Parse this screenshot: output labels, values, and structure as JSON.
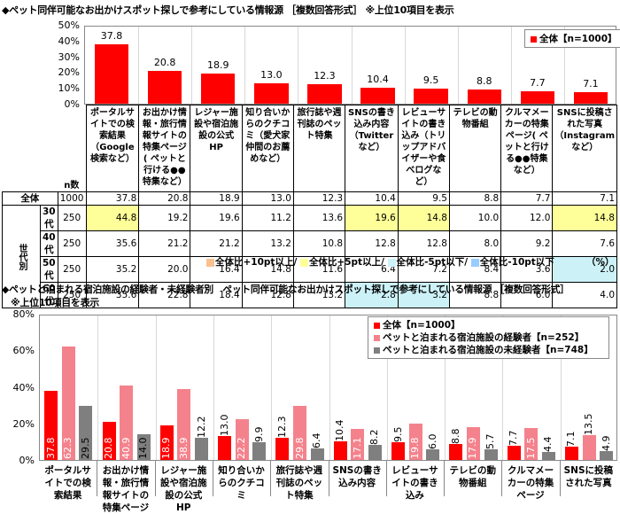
{
  "chart1": {
    "title": "◆ペット同伴可能なお出かけスポット探しで参考にしている情報源 ［複数回答形式］ ※上位10項目を表示",
    "yticks": [
      "50%",
      "40%",
      "30%",
      "20%",
      "10%",
      "0%"
    ],
    "legend": "全体【n=1000】",
    "values_display": [
      "37.8",
      "20.8",
      "18.9",
      "13.0",
      "12.3",
      "10.4",
      "9.5",
      "8.8",
      "7.7",
      "7.1"
    ]
  },
  "table": {
    "n_header": "n数",
    "columns": [
      "ポータルサイトでの検索結果（Google検索など）",
      "お出かけ情報・旅行情報サイトの特集ページ( ペットと行ける●●特集など）",
      "レジャー施設や宿泊施設の公式HP",
      "知り合いからのクチコミ（愛犬家仲間のお薦めなど）",
      "旅行誌や週刊誌のペット特集",
      "SNSの書き込み内容（Twitterなど）",
      "レビューサイトの書き込み（トリップアドバイザーや食べログなど）",
      "テレビの動物番組",
      "クルマメーカーの特集ページ( ペットと行ける●●特集など）",
      "SNSに投稿された写真（Instagramなど）"
    ],
    "total_row": {
      "label": "全体",
      "n": "1000",
      "values": [
        "37.8",
        "20.8",
        "18.9",
        "13.0",
        "12.3",
        "10.4",
        "9.5",
        "8.8",
        "7.7",
        "7.1"
      ]
    },
    "group_label": "世代別",
    "rows": [
      {
        "label": "30代",
        "n": "250",
        "values": [
          "44.8",
          "19.2",
          "19.6",
          "11.2",
          "13.6",
          "19.6",
          "14.8",
          "10.0",
          "12.0",
          "14.8"
        ],
        "hl": [
          "y5",
          "",
          "",
          "",
          "",
          "y5",
          "y5",
          "",
          "",
          "y5"
        ]
      },
      {
        "label": "40代",
        "n": "250",
        "values": [
          "35.6",
          "21.2",
          "21.2",
          "13.2",
          "10.8",
          "12.8",
          "12.8",
          "8.0",
          "9.2",
          "7.6"
        ],
        "hl": [
          "",
          "",
          "",
          "",
          "",
          "",
          "",
          "",
          "",
          ""
        ]
      },
      {
        "label": "50代",
        "n": "250",
        "values": [
          "35.2",
          "20.0",
          "16.4",
          "14.8",
          "11.6",
          "6.4",
          "7.2",
          "8.4",
          "3.6",
          "2.0"
        ],
        "hl": [
          "",
          "",
          "",
          "",
          "",
          "",
          "",
          "",
          "",
          "b5"
        ]
      },
      {
        "label": "60代",
        "n": "250",
        "values": [
          "35.6",
          "22.8",
          "18.4",
          "12.8",
          "13.2",
          "2.8",
          "3.2",
          "8.8",
          "6.0",
          "4.0"
        ],
        "hl": [
          "",
          "",
          "",
          "",
          "",
          "b5",
          "b5",
          "",
          "",
          ""
        ]
      }
    ],
    "notes": [
      "全体比+10pt以上/",
      "全体比+5pt以上/",
      "全体比-5pt以下/",
      "全体比-10pt以下"
    ],
    "unit": "（%）"
  },
  "chart2": {
    "title": "◆ペットと泊まれる宿泊施設の経験者・未経験者別　ペット同伴可能なお出かけスポット探しで参考にしている情報源 ［複数回答形式］",
    "subtitle": "※上位10項目を表示",
    "yticks": [
      "80%",
      "60%",
      "40%",
      "20%",
      "0%"
    ],
    "legend": [
      "全体【n=1000】",
      "ペットと泊まれる宿泊施設の経験者【n=252】",
      "ペットと泊まれる宿泊施設の未経験者【n=748】"
    ],
    "categories": [
      "ポータルサイトでの検索結果",
      "お出かけ情報・旅行情報サイトの特集ページ",
      "レジャー施設や宿泊施設の公式HP",
      "知り合いからのクチコミ",
      "旅行誌や週刊誌のペット特集",
      "SNSの書き込み内容",
      "レビューサイトの書き込み",
      "テレビの動物番組",
      "クルマメーカーの特集ページ",
      "SNSに投稿された写真"
    ]
  },
  "colors": {
    "red": "#ff0000",
    "pink": "#f4828c",
    "gray": "#7f7f7f",
    "yellow": "#ffff99",
    "orange": "#fac090",
    "lightblue": "#ccf2f8",
    "blue": "#99ccff"
  },
  "chart_data": [
    {
      "type": "bar",
      "title": "ペット同伴可能なお出かけスポット探しで参考にしている情報源 ［複数回答形式］ ※上位10項目を表示",
      "categories": [
        "ポータルサイトでの検索結果（Google検索など）",
        "お出かけ情報・旅行情報サイトの特集ページ",
        "レジャー施設や宿泊施設の公式HP",
        "知り合いからのクチコミ",
        "旅行誌や週刊誌のペット特集",
        "SNSの書き込み内容（Twitterなど）",
        "レビューサイトの書き込み",
        "テレビの動物番組",
        "クルマメーカーの特集ページ",
        "SNSに投稿された写真（Instagramなど）"
      ],
      "series": [
        {
          "name": "全体【n=1000】",
          "values": [
            37.8,
            20.8,
            18.9,
            13.0,
            12.3,
            10.4,
            9.5,
            8.8,
            7.7,
            7.1
          ]
        }
      ],
      "ylim": [
        0,
        50
      ],
      "ylabel": "%",
      "legend_position": "top-right",
      "grid": "vertical"
    },
    {
      "type": "table",
      "title": "世代別",
      "rows": [
        {
          "label": "全体",
          "n": 1000,
          "values": [
            37.8,
            20.8,
            18.9,
            13.0,
            12.3,
            10.4,
            9.5,
            8.8,
            7.7,
            7.1
          ]
        },
        {
          "label": "30代",
          "n": 250,
          "values": [
            44.8,
            19.2,
            19.6,
            11.2,
            13.6,
            19.6,
            14.8,
            10.0,
            12.0,
            14.8
          ]
        },
        {
          "label": "40代",
          "n": 250,
          "values": [
            35.6,
            21.2,
            21.2,
            13.2,
            10.8,
            12.8,
            12.8,
            8.0,
            9.2,
            7.6
          ]
        },
        {
          "label": "50代",
          "n": 250,
          "values": [
            35.2,
            20.0,
            16.4,
            14.8,
            11.6,
            6.4,
            7.2,
            8.4,
            3.6,
            2.0
          ]
        },
        {
          "label": "60代",
          "n": 250,
          "values": [
            35.6,
            22.8,
            18.4,
            12.8,
            13.2,
            2.8,
            3.2,
            8.8,
            6.0,
            4.0
          ]
        }
      ]
    },
    {
      "type": "bar",
      "title": "ペットと泊まれる宿泊施設の経験者・未経験者別 ペット同伴可能なお出かけスポット探しで参考にしている情報源",
      "categories": [
        "ポータルサイトでの検索結果",
        "お出かけ情報・旅行情報サイトの特集ページ",
        "レジャー施設や宿泊施設の公式HP",
        "知り合いからのクチコミ",
        "旅行誌や週刊誌のペット特集",
        "SNSの書き込み内容",
        "レビューサイトの書き込み",
        "テレビの動物番組",
        "クルマメーカーの特集ページ",
        "SNSに投稿された写真"
      ],
      "series": [
        {
          "name": "全体【n=1000】",
          "values": [
            37.8,
            20.8,
            18.9,
            13.0,
            12.3,
            10.4,
            9.5,
            8.8,
            7.7,
            7.1
          ]
        },
        {
          "name": "ペットと泊まれる宿泊施設の経験者【n=252】",
          "values": [
            62.3,
            40.9,
            38.9,
            22.2,
            29.8,
            17.1,
            19.8,
            17.9,
            17.5,
            13.5
          ]
        },
        {
          "name": "ペットと泊まれる宿泊施設の未経験者【n=748】",
          "values": [
            29.5,
            14.0,
            12.2,
            9.9,
            6.4,
            8.2,
            6.0,
            5.7,
            4.4,
            4.9
          ]
        }
      ],
      "ylim": [
        0,
        80
      ],
      "ylabel": "%",
      "legend_position": "top-right",
      "grid": "vertical"
    }
  ]
}
